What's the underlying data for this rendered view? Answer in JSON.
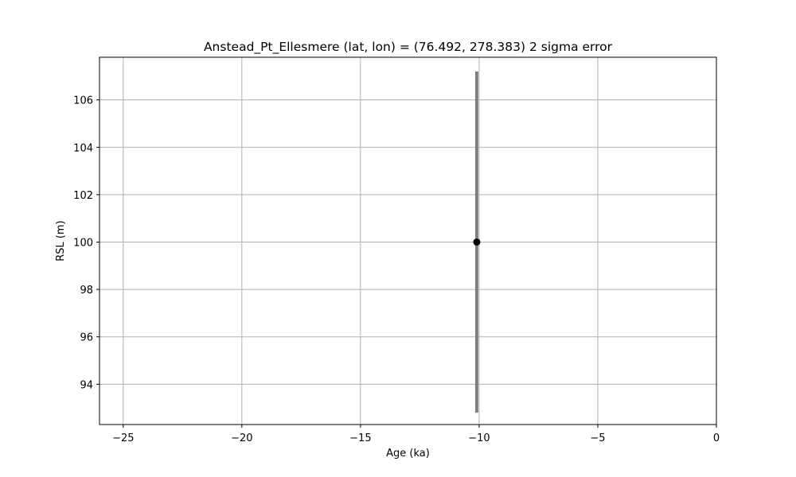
{
  "chart_data": {
    "type": "scatter",
    "title": "Anstead_Pt_Ellesmere (lat, lon) = (76.492, 278.383)  2 sigma error",
    "xlabel": "Age (ka)",
    "ylabel": "RSL (m)",
    "xlim": [
      -26,
      0
    ],
    "ylim": [
      92.3,
      107.8
    ],
    "xticks": [
      -25,
      -20,
      -15,
      -10,
      -5,
      0
    ],
    "xtick_labels": [
      "−25",
      "−20",
      "−15",
      "−10",
      "−5",
      "0"
    ],
    "yticks": [
      94,
      96,
      98,
      100,
      102,
      104,
      106
    ],
    "ytick_labels": [
      "94",
      "96",
      "98",
      "100",
      "102",
      "104",
      "106"
    ],
    "grid": true,
    "points": [
      {
        "x": -10.1,
        "y": 100.0,
        "y_err_low": 92.8,
        "y_err_high": 107.2
      }
    ],
    "colors": {
      "point": "#000000",
      "errorbar": "#808080",
      "grid": "#b0b0b0",
      "axes": "#000000"
    }
  }
}
